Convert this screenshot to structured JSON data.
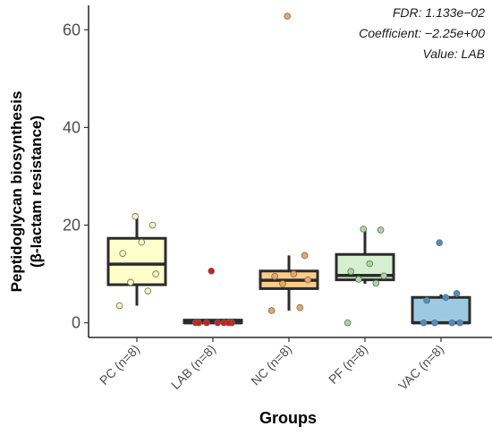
{
  "chart_data": {
    "type": "box",
    "xlabel": "Groups",
    "ylabel_line1": "Peptidoglycan biosynthesis",
    "ylabel_line2": "(β-lactam resistance)",
    "ylim": [
      -3,
      65
    ],
    "yticks": [
      0,
      20,
      40,
      60
    ],
    "annotations": [
      "FDR: 1.133e−02",
      "Coefficient: −2.25e+00",
      "Value: LAB"
    ],
    "groups": [
      {
        "label": "PC (n=8)",
        "color": "#ffffcc",
        "q1": 7.8,
        "median": 12.0,
        "q3": 17.3,
        "whisker_low": 3.5,
        "whisker_high": 21.5,
        "points": [
          3.5,
          6.5,
          8.3,
          10.0,
          14.2,
          16.5,
          20.0,
          21.8
        ],
        "point_color": "#f5f5b8"
      },
      {
        "label": "LAB (n=8)",
        "color": "#fdd5d5",
        "q1": 0,
        "median": 0,
        "q3": 0,
        "whisker_low": 0,
        "whisker_high": 0,
        "points": [
          0,
          0,
          0,
          0,
          0,
          0,
          0,
          10.6
        ],
        "point_color": "#d7191c"
      },
      {
        "label": "NC (n=8)",
        "color": "#fdcc8a",
        "q1": 7.0,
        "median": 8.7,
        "q3": 10.6,
        "whisker_low": 2.5,
        "whisker_high": 13.8,
        "points": [
          2.5,
          3.1,
          8.0,
          8.8,
          9.5,
          10.0,
          13.8,
          62.8
        ],
        "point_color": "#f4a460"
      },
      {
        "label": "PF (n=8)",
        "color": "#d5efcf",
        "q1": 8.8,
        "median": 9.7,
        "q3": 14.0,
        "whisker_low": 8.0,
        "whisker_high": 19.2,
        "points": [
          0,
          8.1,
          8.9,
          9.6,
          10.5,
          12.1,
          19.0,
          19.2
        ],
        "point_color": "#a6d99a"
      },
      {
        "label": "VAC (n=8)",
        "color": "#9ecae1",
        "q1": 0,
        "median": 0,
        "q3": 5.2,
        "whisker_low": 0,
        "whisker_high": 5.8,
        "points": [
          0,
          0,
          0,
          0,
          4.6,
          5.2,
          6.0,
          16.4
        ],
        "point_color": "#4a90c8"
      }
    ]
  }
}
